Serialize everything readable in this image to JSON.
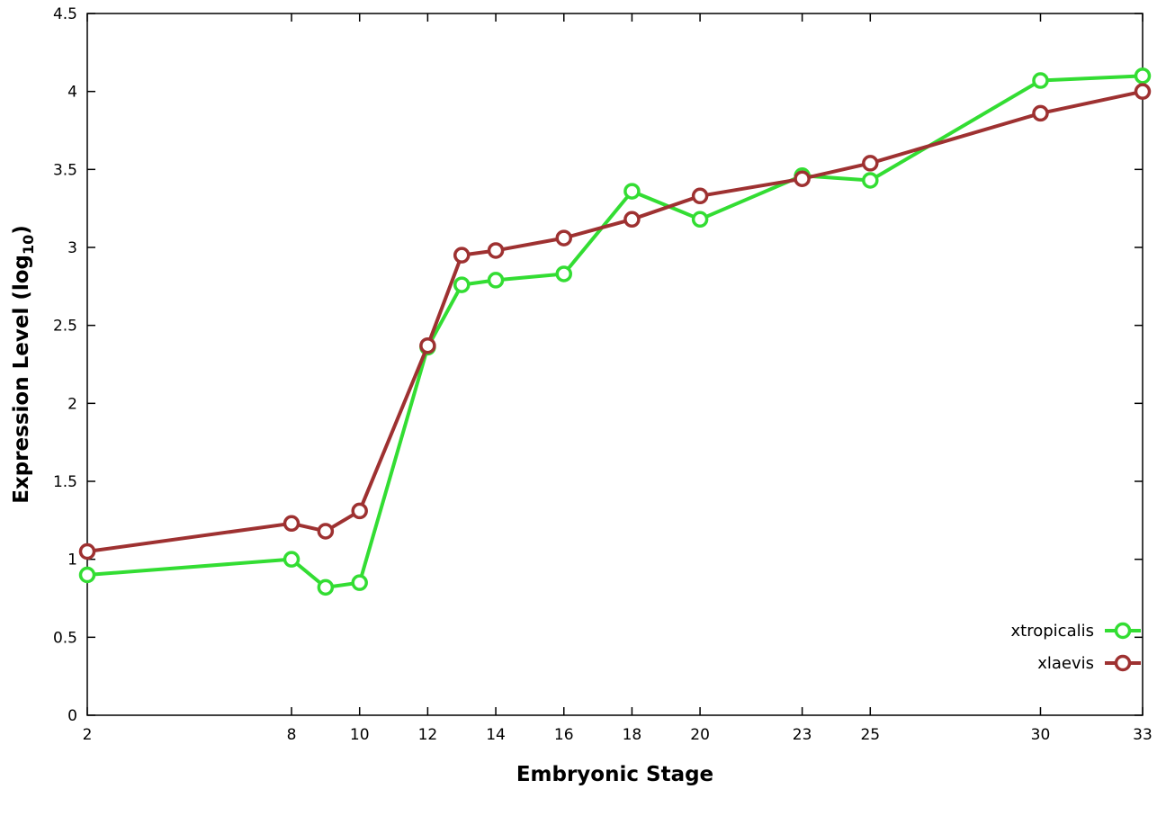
{
  "chart_data": {
    "type": "line",
    "title": "",
    "xlabel": "Embryonic Stage",
    "ylabel": "Expression Level (log10)",
    "ylabel_parts": {
      "prefix": "Expression Level (log",
      "sub": "10",
      "suffix": ")"
    },
    "xlim": [
      2,
      33
    ],
    "ylim": [
      0,
      4.5
    ],
    "grid": false,
    "background": "#ffffff",
    "border_color": "#000000",
    "legend_position": "bottom-right-inside",
    "x_ticks": [
      {
        "value": 2,
        "label": "2"
      },
      {
        "value": 8,
        "label": "8"
      },
      {
        "value": 10,
        "label": "10"
      },
      {
        "value": 12,
        "label": "12"
      },
      {
        "value": 14,
        "label": "14"
      },
      {
        "value": 16,
        "label": "16"
      },
      {
        "value": 18,
        "label": "18"
      },
      {
        "value": 20,
        "label": "20"
      },
      {
        "value": 23,
        "label": "23"
      },
      {
        "value": 25,
        "label": "25"
      },
      {
        "value": 30,
        "label": "30"
      },
      {
        "value": 33,
        "label": "33"
      }
    ],
    "y_ticks": [
      {
        "value": 0,
        "label": "0"
      },
      {
        "value": 0.5,
        "label": "0.5"
      },
      {
        "value": 1,
        "label": "1"
      },
      {
        "value": 1.5,
        "label": "1.5"
      },
      {
        "value": 2,
        "label": "2"
      },
      {
        "value": 2.5,
        "label": "2.5"
      },
      {
        "value": 3,
        "label": "3"
      },
      {
        "value": 3.5,
        "label": "3.5"
      },
      {
        "value": 4,
        "label": "4"
      },
      {
        "value": 4.5,
        "label": "4.5"
      }
    ],
    "x": [
      2,
      8,
      9,
      10,
      12,
      13,
      14,
      16,
      18,
      20,
      23,
      25,
      30,
      33
    ],
    "series": [
      {
        "name": "xtropicalis",
        "color": "#33dd33",
        "values": [
          0.9,
          1.0,
          0.82,
          0.85,
          2.36,
          2.76,
          2.79,
          2.83,
          3.36,
          3.18,
          3.46,
          3.43,
          4.07,
          4.1
        ]
      },
      {
        "name": "xlaevis",
        "color": "#9e3131",
        "values": [
          1.05,
          1.23,
          1.18,
          1.31,
          2.37,
          2.95,
          2.98,
          3.06,
          3.18,
          3.33,
          3.44,
          3.54,
          3.86,
          4.0
        ]
      }
    ]
  }
}
